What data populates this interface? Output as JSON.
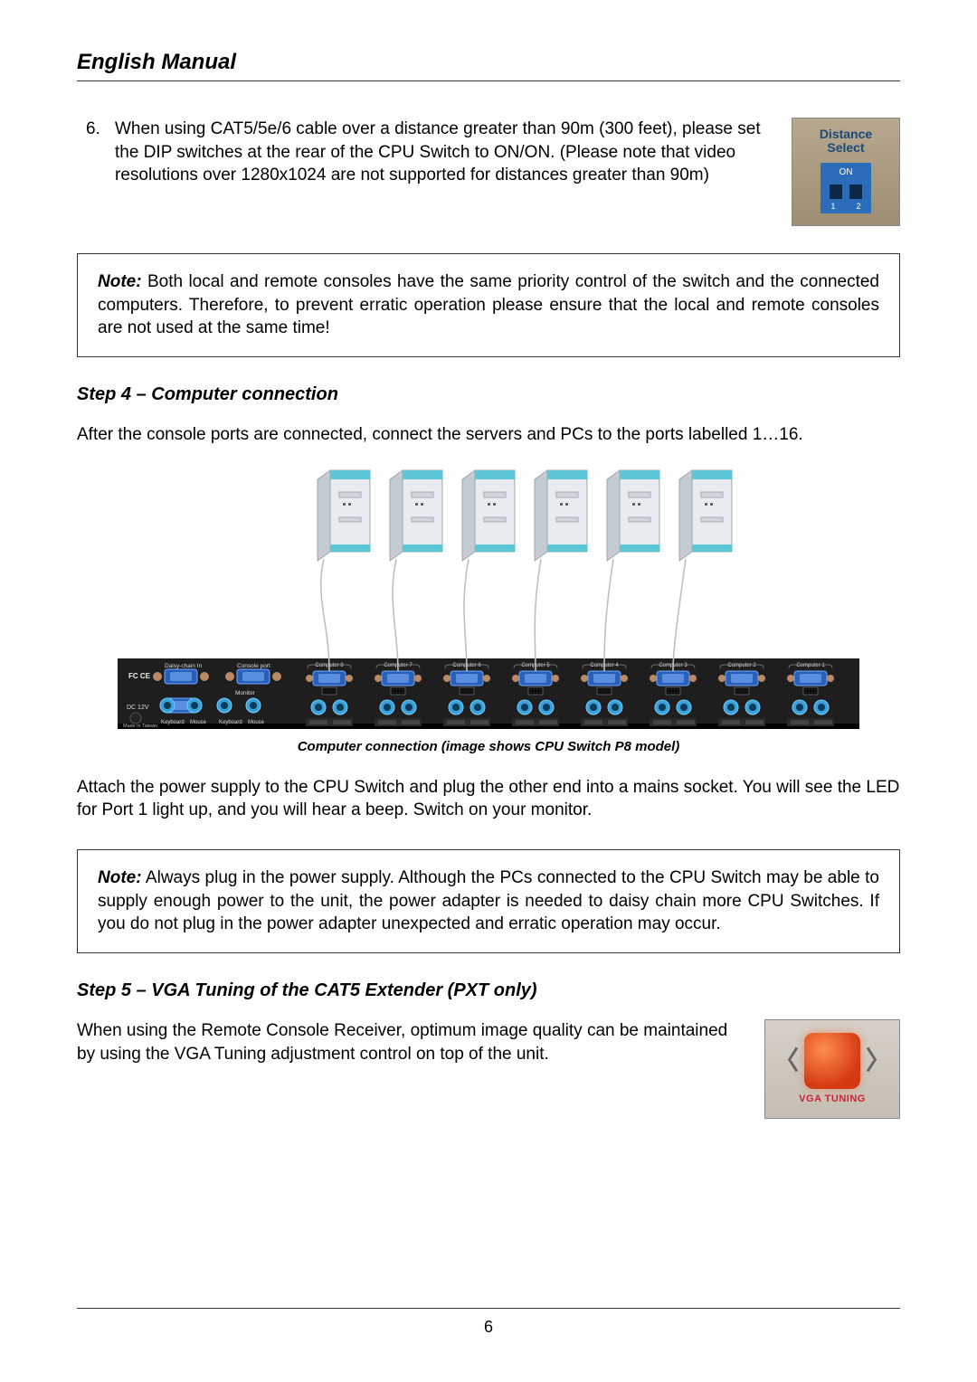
{
  "header": {
    "title": "English Manual"
  },
  "item6": {
    "num": "6.",
    "text": "When using CAT5/5e/6 cable over a distance greater than 90m (300 feet), please set the DIP switches at the rear of the CPU Switch to ON/ON. (Please note that video resolutions over 1280x1024 are not supported for distances greater than 90m)"
  },
  "dip": {
    "line1": "Distance",
    "line2": "Select",
    "on": "ON",
    "n1": "1",
    "n2": "2"
  },
  "note1": {
    "label": "Note:",
    "text": " Both local and remote consoles have the same priority control of the switch and the connected computers. Therefore, to prevent erratic operation please ensure that the local and remote consoles are not used at the same time!"
  },
  "step4": {
    "heading": "Step 4 – Computer connection",
    "intro": "After the console ports are connected, connect the servers and PCs to the ports labelled 1…16.",
    "caption": "Computer connection (image shows CPU Switch P8 model)",
    "after": "Attach the power supply to the CPU Switch and plug the other end into a mains socket. You will see the LED for Port 1 light up, and you will hear a beep. Switch on your monitor."
  },
  "note2": {
    "label": "Note:",
    "text": " Always plug in the power supply. Although the PCs connected to the CPU Switch may be able to supply enough power to the unit, the power adapter is needed to daisy chain more CPU Switches. If you do not plug in the power adapter unexpected and erratic operation may occur."
  },
  "step5": {
    "heading": "Step 5 – VGA Tuning of the CAT5 Extender (PXT only)",
    "text": "When using the Remote Console Receiver, optimum image quality can be maintained by using the VGA Tuning adjustment control on top of the unit."
  },
  "vga": {
    "label": "VGA TUNING"
  },
  "diagram": {
    "ports": [
      "Computer 8",
      "Computer 7",
      "Computer 6",
      "Computer 5",
      "Computer 4",
      "Computer 3",
      "Computer 2",
      "Computer 1"
    ],
    "left_labels": {
      "daisy": "Daisy-chain  In",
      "console": "Console port",
      "monitor": "Monitor",
      "fcc": "FC CE",
      "dc": "DC 12V",
      "kb": "Keyboard",
      "ms": "Mouse",
      "made": "Made in Taiwan"
    },
    "colors": {
      "tower_body": "#e8ecef",
      "tower_accent": "#5cc6d6",
      "tower_shadow": "#c5ccd1",
      "panel": "#1e1e1e",
      "vga": "#2a5fb8",
      "vga_inner": "#5a8fe0",
      "ps2a": "#3aa0d8",
      "ps2b": "#3aa0d8",
      "cable": "#bfbfbf",
      "port_label_bg": "#333",
      "port_label_tx": "#ddd"
    }
  },
  "footer": {
    "page": "6"
  }
}
